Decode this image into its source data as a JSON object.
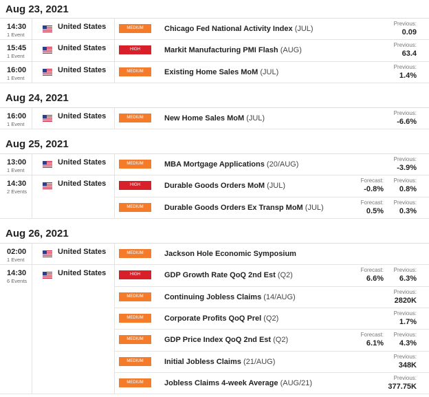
{
  "days": [
    {
      "date": "Aug 23, 2021",
      "groups": [
        {
          "time": "14:30",
          "count": "1 Event",
          "country": "United States",
          "events": [
            {
              "impact": "MEDIUM",
              "name": "Chicago Fed National Activity Index",
              "period": "(JUL)",
              "previous_label": "Previous:",
              "previous": "0.09"
            }
          ]
        },
        {
          "time": "15:45",
          "count": "1 Event",
          "country": "United States",
          "events": [
            {
              "impact": "HIGH",
              "name": "Markit Manufacturing PMI Flash",
              "period": "(AUG)",
              "previous_label": "Previous:",
              "previous": "63.4"
            }
          ]
        },
        {
          "time": "16:00",
          "count": "1 Event",
          "country": "United States",
          "events": [
            {
              "impact": "MEDIUM",
              "name": "Existing Home Sales MoM",
              "period": "(JUL)",
              "previous_label": "Previous:",
              "previous": "1.4%"
            }
          ]
        }
      ]
    },
    {
      "date": "Aug 24, 2021",
      "groups": [
        {
          "time": "16:00",
          "count": "1 Event",
          "country": "United States",
          "events": [
            {
              "impact": "MEDIUM",
              "name": "New Home Sales MoM",
              "period": "(JUL)",
              "previous_label": "Previous:",
              "previous": "-6.6%"
            }
          ]
        }
      ]
    },
    {
      "date": "Aug 25, 2021",
      "groups": [
        {
          "time": "13:00",
          "count": "1 Event",
          "country": "United States",
          "events": [
            {
              "impact": "MEDIUM",
              "name": "MBA Mortgage Applications",
              "period": "(20/AUG)",
              "previous_label": "Previous:",
              "previous": "-3.9%"
            }
          ]
        },
        {
          "time": "14:30",
          "count": "2 Events",
          "country": "United States",
          "events": [
            {
              "impact": "HIGH",
              "name": "Durable Goods Orders MoM",
              "period": "(JUL)",
              "forecast_label": "Forecast:",
              "forecast": "-0.8%",
              "previous_label": "Previous:",
              "previous": "0.8%"
            },
            {
              "impact": "MEDIUM",
              "name": "Durable Goods Orders Ex Transp MoM",
              "period": "(JUL)",
              "forecast_label": "Forecast:",
              "forecast": "0.5%",
              "previous_label": "Previous:",
              "previous": "0.3%"
            }
          ]
        }
      ]
    },
    {
      "date": "Aug 26, 2021",
      "groups": [
        {
          "time": "02:00",
          "count": "1 Event",
          "country": "United States",
          "events": [
            {
              "impact": "MEDIUM",
              "name": "Jackson Hole Economic Symposium"
            }
          ]
        },
        {
          "time": "14:30",
          "count": "6 Events",
          "country": "United States",
          "events": [
            {
              "impact": "HIGH",
              "name": "GDP Growth Rate QoQ 2nd Est",
              "period": "(Q2)",
              "forecast_label": "Forecast:",
              "forecast": "6.6%",
              "previous_label": "Previous:",
              "previous": "6.3%"
            },
            {
              "impact": "MEDIUM",
              "name": "Continuing Jobless Claims",
              "period": "(14/AUG)",
              "previous_label": "Previous:",
              "previous": "2820K"
            },
            {
              "impact": "MEDIUM",
              "name": "Corporate Profits QoQ Prel",
              "period": "(Q2)",
              "previous_label": "Previous:",
              "previous": "1.7%"
            },
            {
              "impact": "MEDIUM",
              "name": "GDP Price Index QoQ 2nd Est",
              "period": "(Q2)",
              "forecast_label": "Forecast:",
              "forecast": "6.1%",
              "previous_label": "Previous:",
              "previous": "4.3%"
            },
            {
              "impact": "MEDIUM",
              "name": "Initial Jobless Claims",
              "period": "(21/AUG)",
              "previous_label": "Previous:",
              "previous": "348K"
            },
            {
              "impact": "MEDIUM",
              "name": "Jobless Claims 4-week Average",
              "period": "(AUG/21)",
              "previous_label": "Previous:",
              "previous": "377.75K"
            }
          ]
        }
      ]
    }
  ]
}
